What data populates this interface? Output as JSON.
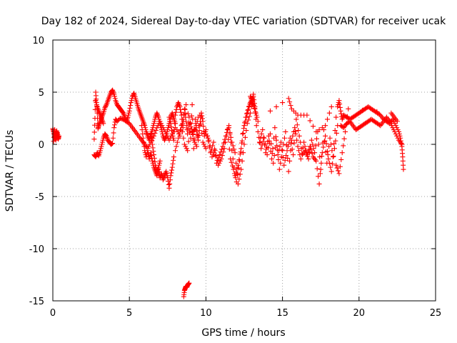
{
  "chart_data": {
    "type": "scatter",
    "title": "Day 182 of 2024, Sidereal Day-to-day VTEC variation (SDTVAR) for receiver ucak",
    "xlabel": "GPS time / hours",
    "ylabel": "SDTVAR / TECUs",
    "xlim": [
      0,
      25
    ],
    "ylim": [
      -15,
      10
    ],
    "xticks": [
      0,
      5,
      10,
      15,
      20,
      25
    ],
    "yticks": [
      -15,
      -10,
      -5,
      0,
      5,
      10
    ],
    "xtick_labels": [
      "0",
      "5",
      "10",
      "15",
      "20",
      "25"
    ],
    "ytick_labels": [
      "-15",
      "-10",
      "-5",
      "0",
      "5",
      "10"
    ],
    "grid": true,
    "marker": "+",
    "series": [
      {
        "name": "SDTVAR",
        "color": "#ff0000",
        "segments": [
          {
            "x": [
              0.0,
              0.05,
              0.1,
              0.15,
              0.2,
              0.25,
              0.3,
              0.35,
              0.4
            ],
            "y": [
              1.5,
              1.2,
              0.8,
              0.5,
              1.0,
              1.3,
              0.9,
              0.5,
              0.8
            ]
          },
          {
            "x": [
              0.05,
              0.12,
              0.2,
              0.3,
              0.38
            ],
            "y": [
              0.3,
              1.4,
              0.4,
              1.1,
              0.6
            ]
          },
          {
            "x": [
              2.7,
              2.75,
              2.8,
              2.85,
              2.9,
              2.95,
              3.0,
              3.1,
              3.2,
              3.3,
              3.4,
              3.5,
              3.6,
              3.7,
              3.8,
              3.9,
              4.0,
              4.1,
              4.2,
              4.3,
              4.4,
              4.5,
              4.6,
              4.7,
              4.8,
              4.9,
              5.0,
              5.1,
              5.2,
              5.3,
              5.4,
              5.5,
              5.6,
              5.7,
              5.8,
              5.9,
              6.0,
              6.1,
              6.2,
              6.3,
              6.4,
              6.5,
              6.6,
              6.7,
              6.8,
              6.9,
              7.0,
              7.1,
              7.2,
              7.3,
              7.4,
              7.5,
              7.6,
              7.7,
              7.8,
              7.9,
              8.0
            ],
            "y": [
              0.5,
              2.5,
              5.0,
              4.0,
              3.0,
              1.5,
              1.8,
              2.2,
              2.6,
              3.0,
              3.5,
              3.8,
              4.2,
              4.6,
              5.0,
              5.2,
              4.8,
              4.2,
              3.8,
              3.6,
              3.4,
              3.2,
              3.0,
              2.6,
              2.2,
              2.6,
              3.2,
              4.0,
              4.6,
              4.9,
              4.4,
              3.9,
              3.4,
              3.0,
              2.6,
              2.2,
              1.8,
              1.2,
              0.8,
              0.4,
              0.9,
              1.4,
              2.0,
              2.6,
              3.0,
              2.6,
              2.0,
              1.4,
              0.8,
              0.4,
              0.8,
              1.4,
              2.0,
              2.6,
              3.0,
              2.5,
              2.0
            ]
          },
          {
            "x": [
              2.7,
              2.8,
              2.9,
              3.0,
              3.1,
              3.2,
              3.3,
              3.4,
              3.5,
              3.6,
              3.7,
              3.8,
              3.9,
              4.0,
              4.1,
              4.2,
              4.4,
              4.6,
              4.8,
              5.0,
              5.2,
              5.4,
              5.6,
              5.8,
              6.0,
              6.2,
              6.4,
              6.6,
              6.8,
              7.0,
              7.2,
              7.4,
              7.6,
              7.8,
              8.0
            ],
            "y": [
              -1.0,
              -1.2,
              -0.8,
              -1.1,
              -0.6,
              0.0,
              0.6,
              1.0,
              0.8,
              0.4,
              0.2,
              0.0,
              0.1,
              1.6,
              2.4,
              2.2,
              2.5,
              2.4,
              2.2,
              2.0,
              1.6,
              1.2,
              0.8,
              0.4,
              0.0,
              -0.4,
              0.2,
              0.8,
              1.6,
              2.2,
              1.6,
              1.0,
              0.4,
              1.0,
              1.6
            ]
          },
          {
            "x": [
              2.8,
              2.9,
              3.0,
              3.1,
              3.2,
              3.3
            ],
            "y": [
              4.2,
              3.6,
              3.2,
              2.8,
              2.4,
              2.0
            ]
          },
          {
            "x": [
              5.8,
              5.9,
              6.0,
              6.1,
              6.2,
              6.3,
              6.4,
              6.5,
              6.6,
              6.7,
              6.8,
              6.9,
              7.0,
              7.1,
              7.2,
              7.3,
              7.4,
              7.5,
              7.6,
              7.7,
              7.8,
              7.9
            ],
            "y": [
              1.8,
              0.6,
              -0.6,
              -1.2,
              -0.6,
              -1.4,
              -0.8,
              -1.6,
              -2.2,
              -2.6,
              -3.0,
              -2.4,
              -3.2,
              -2.8,
              -3.4,
              -3.0,
              -2.6,
              -3.2,
              -4.2,
              -3.0,
              -2.2,
              -1.2
            ]
          },
          {
            "x": [
              6.4,
              6.5,
              6.6,
              6.7,
              6.8,
              6.9,
              7.0
            ],
            "y": [
              1.0,
              0.0,
              -1.0,
              -2.0,
              -2.6,
              -2.2,
              -1.6
            ]
          },
          {
            "x": [
              7.6,
              7.7,
              7.8,
              7.9,
              8.0,
              8.1,
              8.2,
              8.3,
              8.4,
              8.5,
              8.6,
              8.7,
              8.8,
              8.9,
              9.0,
              9.1,
              9.2,
              9.3,
              9.4,
              9.5,
              9.6,
              9.7,
              9.8,
              9.9,
              10.0
            ],
            "y": [
              2.6,
              2.0,
              1.0,
              0.4,
              2.8,
              3.6,
              4.0,
              3.6,
              2.8,
              1.6,
              3.4,
              2.2,
              1.0,
              2.6,
              0.6,
              3.8,
              -0.4,
              2.4,
              1.2,
              0.4,
              1.8,
              3.0,
              2.2,
              0.8,
              1.4
            ]
          },
          {
            "x": [
              8.0,
              8.2,
              8.4,
              8.6,
              8.8,
              9.0,
              9.2,
              9.4,
              9.6,
              9.8,
              10.0
            ],
            "y": [
              -0.6,
              0.6,
              1.8,
              0.0,
              -0.6,
              2.0,
              0.4,
              -0.2,
              2.8,
              0.2,
              -0.4
            ]
          },
          {
            "x": [
              8.1,
              8.3,
              8.5,
              8.7,
              9.1,
              9.3,
              9.5
            ],
            "y": [
              1.4,
              0.8,
              2.4,
              3.8,
              1.2,
              1.4,
              2.6
            ]
          },
          {
            "x": [
              8.55,
              8.6,
              8.65,
              8.7,
              8.75,
              8.8,
              8.85,
              8.9
            ],
            "y": [
              -14.6,
              -14.0,
              -13.8,
              -13.6,
              -13.7,
              -13.5,
              -13.4,
              -13.3
            ]
          },
          {
            "x": [
              10.0,
              10.2,
              10.4,
              10.6,
              10.8,
              11.0,
              11.2,
              11.4,
              11.6,
              11.8,
              12.0,
              12.2,
              12.4,
              12.6,
              12.8,
              13.0,
              13.2,
              13.4
            ],
            "y": [
              1.0,
              0.4,
              -1.2,
              -0.6,
              -2.0,
              -1.4,
              -0.4,
              1.4,
              -1.4,
              -2.4,
              -3.6,
              -1.6,
              1.0,
              2.6,
              3.6,
              4.4,
              3.4,
              2.2
            ]
          },
          {
            "x": [
              10.1,
              10.3,
              10.5,
              10.7,
              10.9,
              11.1,
              11.3,
              11.5,
              11.7,
              11.9,
              12.1,
              12.3,
              12.5,
              12.7,
              12.9,
              13.1,
              13.3
            ],
            "y": [
              0.8,
              -0.8,
              0.2,
              -1.8,
              -1.0,
              -0.2,
              0.8,
              1.8,
              -0.6,
              -3.0,
              -2.0,
              -0.4,
              1.8,
              3.0,
              4.0,
              3.8,
              2.8
            ]
          },
          {
            "x": [
              11.5,
              11.7,
              11.9,
              12.1,
              12.3,
              12.5,
              12.7,
              12.9,
              13.1
            ],
            "y": [
              1.6,
              0.2,
              -0.8,
              -3.8,
              -2.4,
              0.0,
              2.0,
              3.0,
              4.8
            ]
          },
          {
            "x": [
              12.9,
              13.0,
              13.1,
              13.2,
              13.3
            ],
            "y": [
              4.6,
              4.2,
              4.6,
              3.6,
              1.8
            ]
          },
          {
            "x": [
              13.4,
              13.6,
              13.8,
              14.0,
              14.2,
              14.4,
              14.6,
              14.8,
              15.0,
              15.2,
              15.4,
              15.6,
              15.8,
              16.0,
              16.2,
              16.4,
              16.6,
              16.8,
              17.0,
              17.2,
              17.4,
              17.6,
              17.8,
              18.0,
              18.2,
              18.4,
              18.6
            ],
            "y": [
              1.2,
              -0.4,
              0.6,
              -1.0,
              1.0,
              -1.8,
              0.4,
              -2.4,
              -0.6,
              1.2,
              -2.6,
              0.4,
              1.6,
              -0.2,
              -1.4,
              0.2,
              -1.0,
              -0.2,
              -1.2,
              -1.6,
              -3.8,
              -0.8,
              0.8,
              -1.4,
              -2.6,
              -0.4,
              1.8
            ]
          },
          {
            "x": [
              13.5,
              13.7,
              13.9,
              14.1,
              14.3,
              14.5,
              14.7,
              14.9,
              15.1,
              15.3,
              15.5,
              15.7,
              15.9,
              16.1,
              16.3,
              16.5,
              16.7,
              16.9,
              17.1,
              17.3,
              17.5,
              17.7,
              17.9,
              18.1,
              18.3,
              18.5
            ],
            "y": [
              0.2,
              1.4,
              -0.8,
              0.8,
              -1.4,
              1.6,
              -1.0,
              0.2,
              -2.0,
              -0.6,
              0.6,
              -1.0,
              2.4,
              0.8,
              -1.0,
              -0.6,
              -1.4,
              0.4,
              -0.8,
              1.2,
              -2.4,
              1.4,
              -1.8,
              0.6,
              -1.2,
              2.6
            ]
          },
          {
            "x": [
              14.2,
              15.4,
              15.6,
              16.0,
              16.6,
              17.2,
              17.8,
              18.2
            ],
            "y": [
              3.2,
              4.4,
              3.4,
              2.8,
              2.8,
              1.2,
              1.8,
              3.6
            ]
          },
          {
            "x": [
              18.6,
              18.7,
              18.8,
              18.9,
              19.0,
              19.2,
              19.4,
              19.6,
              19.8,
              20.0,
              20.2,
              20.4,
              20.6,
              20.8,
              21.0,
              21.2,
              21.4,
              21.6,
              21.8,
              22.0,
              22.2,
              22.4,
              22.6,
              22.7,
              22.8,
              22.85,
              22.9
            ],
            "y": [
              3.6,
              4.2,
              3.2,
              2.4,
              2.8,
              2.6,
              2.4,
              2.6,
              2.8,
              3.0,
              3.2,
              3.4,
              3.6,
              3.4,
              3.2,
              3.0,
              2.8,
              2.4,
              2.2,
              2.0,
              2.4,
              1.8,
              1.2,
              0.6,
              -0.2,
              -1.2,
              -2.4
            ]
          },
          {
            "x": [
              18.8,
              19.0,
              19.2,
              19.4,
              19.6,
              19.8,
              20.0,
              20.2,
              20.4,
              20.6,
              20.8,
              21.0,
              21.2,
              21.4,
              21.6,
              21.8,
              22.0,
              22.2,
              22.4,
              22.6,
              22.8
            ],
            "y": [
              1.8,
              1.6,
              2.0,
              2.2,
              1.8,
              1.4,
              1.6,
              1.8,
              2.0,
              2.2,
              2.4,
              2.2,
              2.0,
              1.8,
              2.2,
              2.6,
              2.2,
              1.6,
              1.0,
              0.4,
              0.0
            ]
          },
          {
            "x": [
              18.5,
              18.7,
              18.9,
              19.1,
              19.3,
              22.1,
              22.3,
              22.5
            ],
            "y": [
              -2.0,
              -2.8,
              -0.8,
              1.2,
              3.4,
              3.0,
              2.6,
              2.2
            ]
          }
        ]
      }
    ]
  }
}
